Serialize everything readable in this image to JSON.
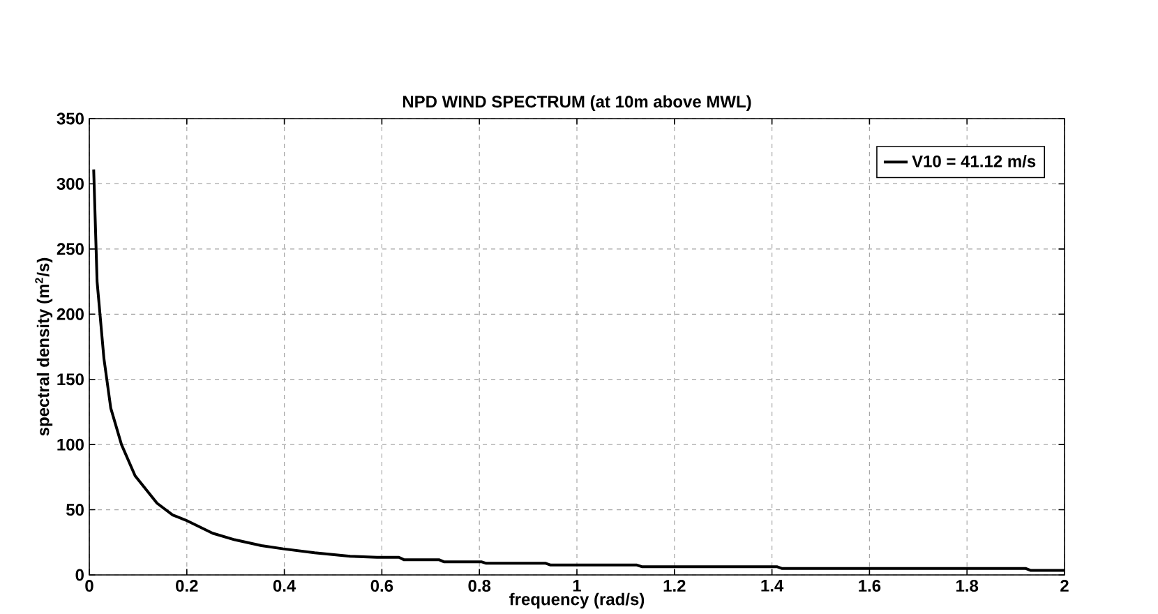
{
  "chart_data": {
    "type": "line",
    "title": "NPD WIND SPECTRUM (at 10m above MWL)",
    "xlabel": "frequency (rad/s)",
    "ylabel": "spectral density (m$^{2}$/s)",
    "xlim": [
      0,
      2
    ],
    "xticks": [
      0,
      0.2,
      0.4,
      0.6,
      0.8,
      1,
      1.2,
      1.4,
      1.6,
      1.8,
      2
    ],
    "ylim": [
      0,
      350
    ],
    "yticks": [
      0,
      50,
      100,
      150,
      200,
      250,
      300,
      350
    ],
    "grid": true,
    "legend": "top right",
    "marker": "none",
    "line_style": "solid",
    "series": [
      {
        "name": "V10 = 41.12 m/s",
        "color": "#000000",
        "x": [
          0.009,
          0.016,
          0.03,
          0.044,
          0.066,
          0.094,
          0.139,
          0.171,
          0.198,
          0.253,
          0.298,
          0.353,
          0.398,
          0.462,
          0.535,
          0.59,
          0.635,
          0.645,
          0.717,
          0.727,
          0.804,
          0.814,
          0.936,
          0.946,
          1.123,
          1.133,
          1.41,
          1.42,
          1.92,
          1.93,
          2.0
        ],
        "values": [
          311,
          225,
          166,
          128,
          100,
          76,
          55,
          46,
          42,
          32,
          27,
          22.5,
          20,
          17,
          14.3,
          13.5,
          13.5,
          11.7,
          11.7,
          10.1,
          10.1,
          8.9,
          8.9,
          7.6,
          7.6,
          6.3,
          6.3,
          5,
          5,
          3.5,
          3.5
        ]
      }
    ]
  }
}
